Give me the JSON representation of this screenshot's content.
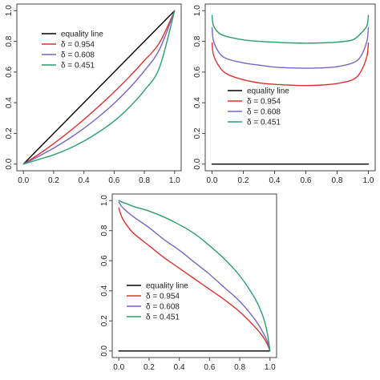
{
  "chart_data": [
    {
      "type": "line",
      "title": "",
      "xlabel": "",
      "ylabel": "",
      "xlim": [
        0,
        1
      ],
      "ylim": [
        0,
        1
      ],
      "xticks": [
        "0.0",
        "0.2",
        "0.4",
        "0.6",
        "0.8",
        "1.0"
      ],
      "yticks": [
        "0.0",
        "0.2",
        "0.4",
        "0.6",
        "0.8",
        "1.0"
      ],
      "legend_position": "top-left",
      "series": [
        {
          "name": "equality line",
          "color": "#000000",
          "x": [
            0,
            0.1,
            0.2,
            0.3,
            0.4,
            0.5,
            0.6,
            0.7,
            0.8,
            0.9,
            1.0
          ],
          "y": [
            0,
            0.1,
            0.2,
            0.3,
            0.4,
            0.5,
            0.6,
            0.7,
            0.8,
            0.9,
            1.0
          ]
        },
        {
          "name": "δ = 0.954",
          "color": "#e0302d",
          "x": [
            0,
            0.1,
            0.2,
            0.3,
            0.4,
            0.5,
            0.6,
            0.7,
            0.8,
            0.9,
            1.0
          ],
          "y": [
            0,
            0.063,
            0.133,
            0.209,
            0.291,
            0.378,
            0.47,
            0.569,
            0.675,
            0.791,
            1.0
          ]
        },
        {
          "name": "δ = 0.608",
          "color": "#7b63c4",
          "x": [
            0,
            0.1,
            0.2,
            0.3,
            0.4,
            0.5,
            0.6,
            0.7,
            0.8,
            0.9,
            1.0
          ],
          "y": [
            0,
            0.05,
            0.104,
            0.165,
            0.233,
            0.31,
            0.396,
            0.494,
            0.608,
            0.747,
            1.0
          ]
        },
        {
          "name": "δ = 0.451",
          "color": "#29a06a",
          "x": [
            0,
            0.1,
            0.2,
            0.3,
            0.4,
            0.5,
            0.6,
            0.7,
            0.8,
            0.9,
            1.0
          ],
          "y": [
            0,
            0.03,
            0.06,
            0.1,
            0.15,
            0.21,
            0.28,
            0.37,
            0.48,
            0.63,
            1.0
          ]
        }
      ]
    },
    {
      "type": "line",
      "title": "",
      "xlabel": "",
      "ylabel": "",
      "xlim": [
        0,
        1
      ],
      "ylim": [
        0,
        1
      ],
      "xticks": [
        "0.0",
        "0.2",
        "0.4",
        "0.6",
        "0.8",
        "1.0"
      ],
      "yticks": [
        "0.0",
        "0.2",
        "0.4",
        "0.6",
        "0.8",
        "1.0"
      ],
      "legend_position": "bottom-left",
      "series": [
        {
          "name": "equality line",
          "color": "#000000",
          "x": [
            0,
            1.0
          ],
          "y": [
            0,
            0
          ]
        },
        {
          "name": "δ = 0.954",
          "color": "#e0302d",
          "x": [
            0.0,
            0.01,
            0.05,
            0.1,
            0.2,
            0.3,
            0.4,
            0.5,
            0.6,
            0.7,
            0.8,
            0.9,
            0.95,
            0.99,
            1.0
          ],
          "y": [
            0.79,
            0.71,
            0.63,
            0.585,
            0.55,
            0.53,
            0.52,
            0.515,
            0.512,
            0.515,
            0.525,
            0.55,
            0.6,
            0.7,
            0.79
          ]
        },
        {
          "name": "δ = 0.608",
          "color": "#7b63c4",
          "x": [
            0.0,
            0.01,
            0.05,
            0.1,
            0.2,
            0.3,
            0.4,
            0.5,
            0.6,
            0.7,
            0.8,
            0.9,
            0.95,
            0.99,
            1.0
          ],
          "y": [
            0.89,
            0.8,
            0.72,
            0.685,
            0.66,
            0.645,
            0.632,
            0.627,
            0.625,
            0.627,
            0.635,
            0.66,
            0.7,
            0.8,
            0.89
          ]
        },
        {
          "name": "δ = 0.451",
          "color": "#29a06a",
          "x": [
            0.0,
            0.01,
            0.05,
            0.1,
            0.2,
            0.3,
            0.4,
            0.5,
            0.6,
            0.7,
            0.8,
            0.9,
            0.95,
            0.99,
            1.0
          ],
          "y": [
            0.97,
            0.9,
            0.85,
            0.83,
            0.81,
            0.8,
            0.795,
            0.79,
            0.788,
            0.79,
            0.795,
            0.81,
            0.85,
            0.9,
            0.97
          ]
        }
      ]
    },
    {
      "type": "line",
      "title": "",
      "xlabel": "",
      "ylabel": "",
      "xlim": [
        0,
        1
      ],
      "ylim": [
        0,
        1
      ],
      "xticks": [
        "0.0",
        "0.2",
        "0.4",
        "0.6",
        "0.8",
        "1.0"
      ],
      "yticks": [
        "0.0",
        "0.2",
        "0.4",
        "0.6",
        "0.8",
        "1.0"
      ],
      "legend_position": "bottom-left",
      "series": [
        {
          "name": "equality line",
          "color": "#000000",
          "x": [
            0,
            1.0
          ],
          "y": [
            0,
            0
          ]
        },
        {
          "name": "δ = 0.954",
          "color": "#e0302d",
          "x": [
            0.0,
            0.02,
            0.05,
            0.1,
            0.2,
            0.3,
            0.4,
            0.5,
            0.6,
            0.7,
            0.8,
            0.9,
            0.95,
            0.98,
            1.0
          ],
          "y": [
            0.95,
            0.89,
            0.84,
            0.78,
            0.7,
            0.62,
            0.55,
            0.48,
            0.41,
            0.34,
            0.26,
            0.16,
            0.1,
            0.05,
            0.0
          ]
        },
        {
          "name": "δ = 0.608",
          "color": "#7b63c4",
          "x": [
            0.0,
            0.02,
            0.05,
            0.1,
            0.2,
            0.3,
            0.4,
            0.5,
            0.6,
            0.7,
            0.8,
            0.9,
            0.95,
            0.98,
            1.0
          ],
          "y": [
            0.99,
            0.96,
            0.93,
            0.89,
            0.82,
            0.74,
            0.67,
            0.59,
            0.51,
            0.42,
            0.33,
            0.21,
            0.13,
            0.07,
            0.0
          ]
        },
        {
          "name": "δ = 0.451",
          "color": "#29a06a",
          "x": [
            0.0,
            0.02,
            0.05,
            0.1,
            0.2,
            0.3,
            0.4,
            0.5,
            0.6,
            0.7,
            0.8,
            0.9,
            0.95,
            0.98,
            1.0
          ],
          "y": [
            1.0,
            0.99,
            0.98,
            0.96,
            0.93,
            0.89,
            0.84,
            0.78,
            0.7,
            0.61,
            0.5,
            0.35,
            0.24,
            0.13,
            0.0
          ]
        }
      ]
    }
  ]
}
